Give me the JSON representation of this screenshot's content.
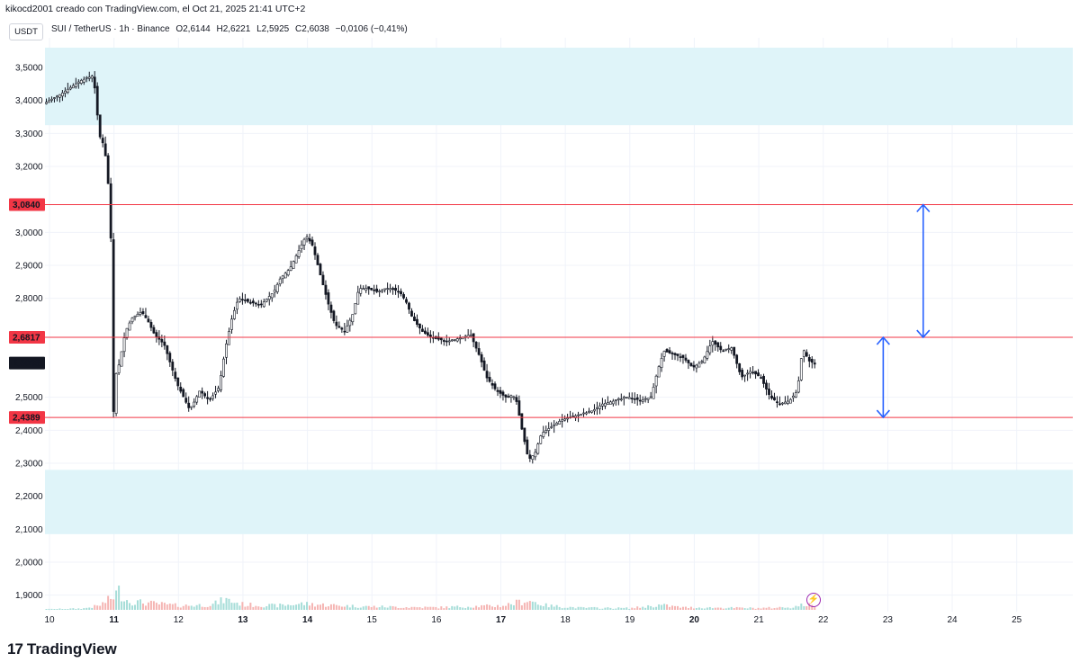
{
  "header": {
    "attribution": "kikocd2001 creado con TradingView.com, el Oct 21, 2025 21:41 UTC+2",
    "currency_button": "USDT",
    "symbol": "SUI / TetherUS · 1h · Binance",
    "ohlc": {
      "open": "O2,6144",
      "high": "H2,6221",
      "low": "L2,5925",
      "close": "C2,6038",
      "change": "−0,0106 (−0,41%)"
    }
  },
  "footer": {
    "logo_mark": "17",
    "brand": "TradingView"
  },
  "colors": {
    "up": "#26a69a",
    "down": "#ef5350",
    "candle": "#131722",
    "zone": "#dff4f9",
    "level": "#f23645",
    "arrow": "#2962ff",
    "grid": "#f0f3fa",
    "vol_up": "#a6ddd8",
    "vol_down": "#f5b5b3"
  },
  "chart_data": {
    "type": "candlestick",
    "symbol": "SUI/USDT",
    "interval": "1h",
    "y_range": [
      1.85,
      3.59
    ],
    "y_ticks": [
      {
        "value": 3.5,
        "label": "3,5000"
      },
      {
        "value": 3.4,
        "label": "3,4000"
      },
      {
        "value": 3.3,
        "label": "3,3000"
      },
      {
        "value": 3.2,
        "label": "3,2000"
      },
      {
        "value": 3.0,
        "label": "3,0000"
      },
      {
        "value": 2.9,
        "label": "2,9000"
      },
      {
        "value": 2.8,
        "label": "2,8000"
      },
      {
        "value": 2.5,
        "label": "2,5000"
      },
      {
        "value": 2.4,
        "label": "2,4000"
      },
      {
        "value": 2.3,
        "label": "2,3000"
      },
      {
        "value": 2.2,
        "label": "2,2000"
      },
      {
        "value": 2.1,
        "label": "2,1000"
      },
      {
        "value": 2.0,
        "label": "2,0000"
      },
      {
        "value": 1.9,
        "label": "1,9000"
      }
    ],
    "x_range": [
      9.93,
      25.87
    ],
    "x_ticks": [
      {
        "value": 10,
        "label": "10",
        "bold": false
      },
      {
        "value": 11,
        "label": "11",
        "bold": true
      },
      {
        "value": 12,
        "label": "12",
        "bold": false
      },
      {
        "value": 13,
        "label": "13",
        "bold": true
      },
      {
        "value": 14,
        "label": "14",
        "bold": true
      },
      {
        "value": 15,
        "label": "15",
        "bold": false
      },
      {
        "value": 16,
        "label": "16",
        "bold": false
      },
      {
        "value": 17,
        "label": "17",
        "bold": true
      },
      {
        "value": 18,
        "label": "18",
        "bold": false
      },
      {
        "value": 19,
        "label": "19",
        "bold": false
      },
      {
        "value": 20,
        "label": "20",
        "bold": true
      },
      {
        "value": 21,
        "label": "21",
        "bold": false
      },
      {
        "value": 22,
        "label": "22",
        "bold": false
      },
      {
        "value": 23,
        "label": "23",
        "bold": false
      },
      {
        "value": 24,
        "label": "24",
        "bold": false
      },
      {
        "value": 25,
        "label": "25",
        "bold": false
      }
    ],
    "levels": [
      {
        "value": 3.084,
        "label": "3,0840"
      },
      {
        "value": 2.6817,
        "label": "2,6817"
      },
      {
        "value": 2.4389,
        "label": "2,4389"
      }
    ],
    "last_price": {
      "value": 2.6038,
      "label": "2,6038"
    },
    "zones": [
      {
        "low": 3.325,
        "high": 3.56
      },
      {
        "low": 2.085,
        "high": 2.28
      }
    ],
    "arrows": [
      {
        "x": 23.55,
        "from": 3.084,
        "to": 2.6817
      },
      {
        "x": 22.93,
        "from": 2.6817,
        "to": 2.4389
      }
    ],
    "price_path": [
      [
        9.93,
        3.39
      ],
      [
        10.2,
        3.42
      ],
      [
        10.5,
        3.46
      ],
      [
        10.7,
        3.475
      ],
      [
        10.72,
        3.44
      ],
      [
        10.75,
        3.4
      ],
      [
        10.78,
        3.3
      ],
      [
        10.85,
        3.27
      ],
      [
        10.9,
        3.22
      ],
      [
        10.95,
        3.1
      ],
      [
        10.97,
        3.06
      ],
      [
        10.99,
        2.13
      ],
      [
        11.02,
        2.55
      ],
      [
        11.1,
        2.6
      ],
      [
        11.2,
        2.7
      ],
      [
        11.3,
        2.74
      ],
      [
        11.45,
        2.76
      ],
      [
        11.55,
        2.73
      ],
      [
        11.65,
        2.69
      ],
      [
        11.8,
        2.66
      ],
      [
        11.9,
        2.6
      ],
      [
        12.0,
        2.54
      ],
      [
        12.1,
        2.5
      ],
      [
        12.2,
        2.46
      ],
      [
        12.35,
        2.52
      ],
      [
        12.5,
        2.49
      ],
      [
        12.65,
        2.53
      ],
      [
        12.75,
        2.65
      ],
      [
        12.85,
        2.74
      ],
      [
        12.95,
        2.8
      ],
      [
        13.1,
        2.79
      ],
      [
        13.3,
        2.78
      ],
      [
        13.5,
        2.82
      ],
      [
        13.6,
        2.86
      ],
      [
        13.75,
        2.89
      ],
      [
        13.9,
        2.95
      ],
      [
        14.0,
        2.99
      ],
      [
        14.1,
        2.96
      ],
      [
        14.25,
        2.85
      ],
      [
        14.35,
        2.78
      ],
      [
        14.45,
        2.72
      ],
      [
        14.6,
        2.7
      ],
      [
        14.72,
        2.75
      ],
      [
        14.82,
        2.83
      ],
      [
        14.95,
        2.83
      ],
      [
        15.1,
        2.82
      ],
      [
        15.3,
        2.83
      ],
      [
        15.45,
        2.82
      ],
      [
        15.55,
        2.79
      ],
      [
        15.65,
        2.74
      ],
      [
        15.8,
        2.7
      ],
      [
        15.95,
        2.68
      ],
      [
        16.2,
        2.67
      ],
      [
        16.4,
        2.68
      ],
      [
        16.55,
        2.69
      ],
      [
        16.7,
        2.62
      ],
      [
        16.8,
        2.56
      ],
      [
        16.95,
        2.52
      ],
      [
        17.1,
        2.5
      ],
      [
        17.25,
        2.5
      ],
      [
        17.35,
        2.4
      ],
      [
        17.45,
        2.31
      ],
      [
        17.55,
        2.33
      ],
      [
        17.65,
        2.39
      ],
      [
        17.8,
        2.41
      ],
      [
        17.95,
        2.43
      ],
      [
        18.1,
        2.44
      ],
      [
        18.3,
        2.45
      ],
      [
        18.45,
        2.46
      ],
      [
        18.6,
        2.48
      ],
      [
        18.8,
        2.49
      ],
      [
        19.0,
        2.5
      ],
      [
        19.2,
        2.49
      ],
      [
        19.35,
        2.5
      ],
      [
        19.45,
        2.58
      ],
      [
        19.55,
        2.64
      ],
      [
        19.7,
        2.63
      ],
      [
        19.85,
        2.62
      ],
      [
        20.0,
        2.59
      ],
      [
        20.15,
        2.61
      ],
      [
        20.3,
        2.67
      ],
      [
        20.45,
        2.64
      ],
      [
        20.6,
        2.65
      ],
      [
        20.75,
        2.56
      ],
      [
        20.9,
        2.58
      ],
      [
        21.05,
        2.56
      ],
      [
        21.2,
        2.5
      ],
      [
        21.35,
        2.48
      ],
      [
        21.5,
        2.49
      ],
      [
        21.62,
        2.52
      ],
      [
        21.7,
        2.65
      ],
      [
        21.8,
        2.61
      ],
      [
        21.87,
        2.604
      ]
    ],
    "volume_path": [
      [
        9.93,
        0.02
      ],
      [
        10.5,
        0.04
      ],
      [
        10.75,
        0.12
      ],
      [
        10.95,
        0.35
      ],
      [
        11.05,
        0.55
      ],
      [
        11.2,
        0.25
      ],
      [
        11.5,
        0.2
      ],
      [
        12.0,
        0.12
      ],
      [
        12.5,
        0.15
      ],
      [
        12.7,
        0.3
      ],
      [
        13.0,
        0.15
      ],
      [
        13.5,
        0.12
      ],
      [
        13.9,
        0.18
      ],
      [
        14.3,
        0.14
      ],
      [
        14.8,
        0.1
      ],
      [
        15.5,
        0.08
      ],
      [
        16.0,
        0.07
      ],
      [
        16.5,
        0.1
      ],
      [
        17.0,
        0.12
      ],
      [
        17.4,
        0.28
      ],
      [
        17.7,
        0.12
      ],
      [
        18.2,
        0.06
      ],
      [
        19.0,
        0.05
      ],
      [
        19.45,
        0.14
      ],
      [
        19.8,
        0.07
      ],
      [
        20.5,
        0.06
      ],
      [
        21.0,
        0.05
      ],
      [
        21.5,
        0.08
      ],
      [
        21.7,
        0.16
      ],
      [
        21.87,
        0.1
      ]
    ],
    "volume_max": 2.0
  }
}
